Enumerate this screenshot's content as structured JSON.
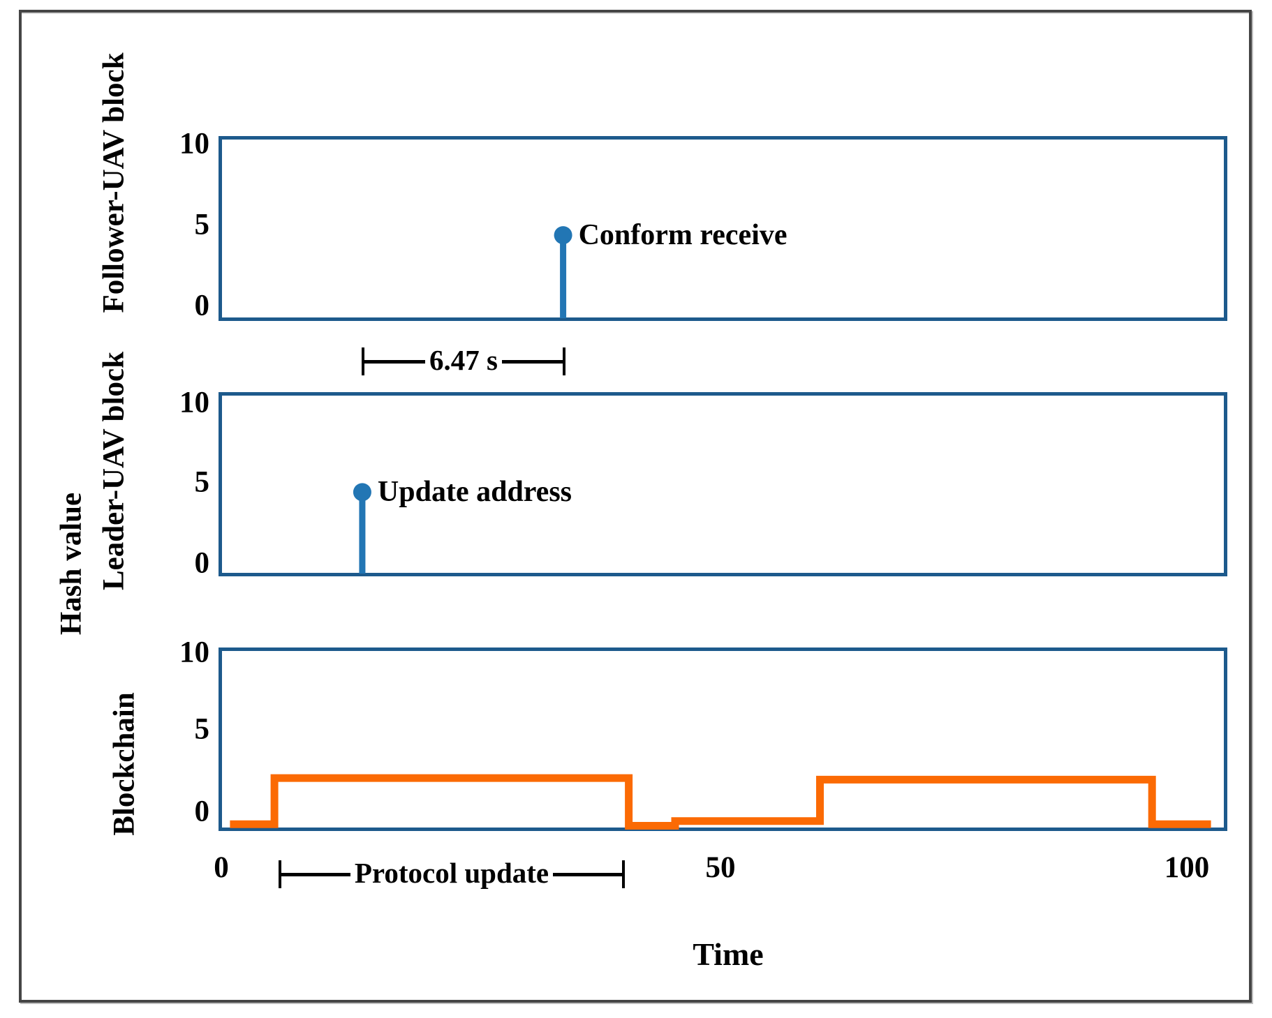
{
  "figure": {
    "outer_ylabel": "Hash value",
    "xlabel": "Time"
  },
  "annotations": {
    "gap": {
      "label": "6.47 s"
    },
    "protocol": {
      "label": "Protocol update"
    }
  },
  "colors": {
    "plot_border": "#1d5a8c",
    "stem": "#2276b4",
    "wave": "#fb6a04",
    "annotation": "#000000",
    "outer_border": "#454545"
  },
  "chart_data": [
    {
      "type": "stem",
      "ylabel": "Follower-UAV block",
      "yticks": [
        10,
        5,
        0
      ],
      "ylim": [
        -0.9,
        10.5
      ],
      "xlim": [
        0,
        104
      ],
      "grid": false,
      "points": [
        {
          "x": 35.4,
          "y": 4.35,
          "label": "Conform receive"
        }
      ]
    },
    {
      "type": "stem",
      "ylabel": "Leader-UAV block",
      "yticks": [
        10,
        5,
        0
      ],
      "ylim": [
        -0.9,
        10.5
      ],
      "xlim": [
        0,
        104
      ],
      "grid": false,
      "points": [
        {
          "x": 14.6,
          "y": 4.4,
          "label": "Update address"
        }
      ]
    },
    {
      "type": "step-line",
      "ylabel": "Blockchain",
      "xlabel": "Time",
      "yticks": [
        10,
        5,
        0
      ],
      "xticks": [
        0,
        50,
        100
      ],
      "ylim": [
        -1.3,
        10.4
      ],
      "xlim": [
        0,
        104
      ],
      "grid": false,
      "steps": [
        {
          "x": 0.9,
          "y": -0.8
        },
        {
          "x": 5.5,
          "y": 2.1
        },
        {
          "x": 42.2,
          "y": -0.9
        },
        {
          "x": 47.0,
          "y": -0.6
        },
        {
          "x": 62.0,
          "y": 2.0
        },
        {
          "x": 96.4,
          "y": -0.8
        },
        {
          "x": 102.5,
          "y": -0.8
        }
      ]
    }
  ]
}
